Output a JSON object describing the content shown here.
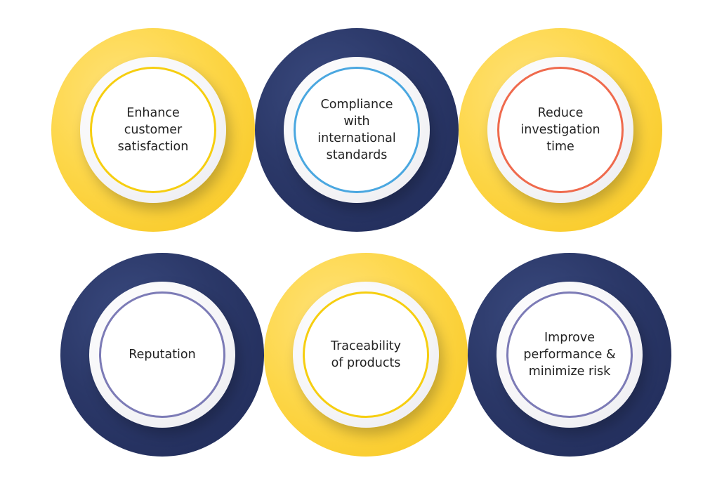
{
  "colors": {
    "yellow": "#FDD74A",
    "navy": "#2B3868",
    "ring_yellow": "#F6CE10",
    "ring_blue": "#4AA7E0",
    "ring_red": "#EF6A4D",
    "ring_purple": "#7C7BB6"
  },
  "benefits": [
    {
      "label": "Enhance\ncustomer\nsatisfaction"
    },
    {
      "label": "Compliance\nwith\ninternational\nstandards"
    },
    {
      "label": "Reduce\ninvestigation\ntime"
    },
    {
      "label": "Reputation"
    },
    {
      "label": "Traceability\nof products"
    },
    {
      "label": "Improve\nperformance &\nminimize risk"
    }
  ]
}
